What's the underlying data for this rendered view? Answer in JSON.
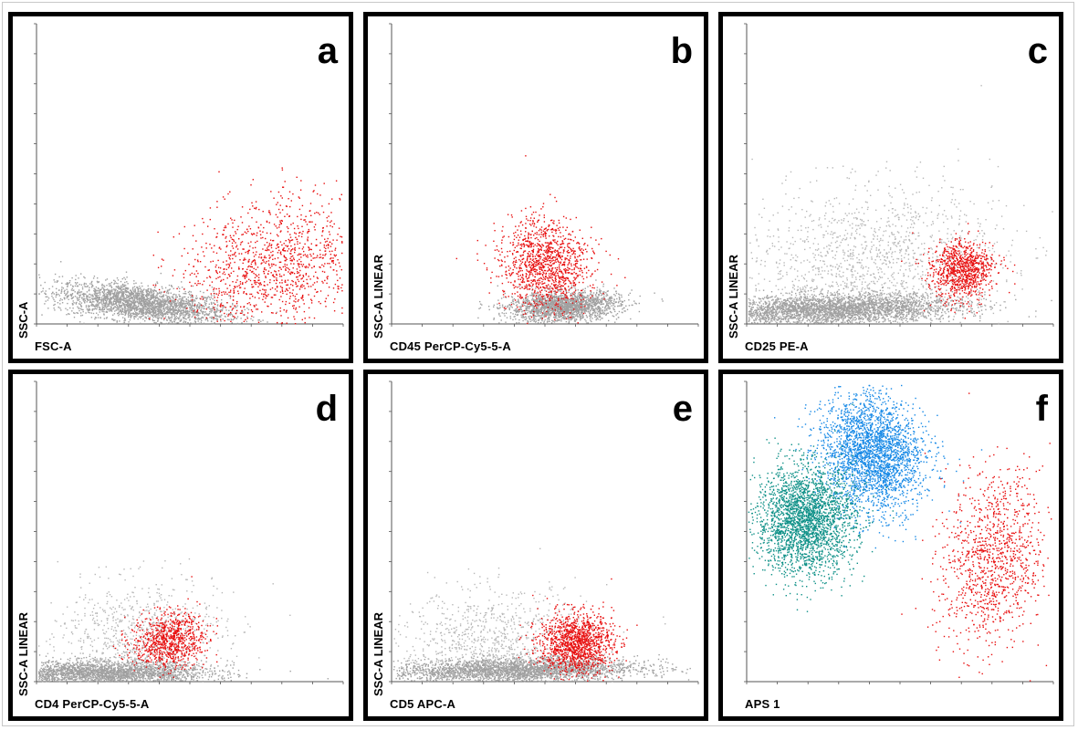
{
  "chart_data": [
    {
      "type": "scatter",
      "panel": "a",
      "xlabel": "FSC-A",
      "ylabel": "SSC-A",
      "populations": [
        {
          "color": "#a0a0a0",
          "n": 2600,
          "cx": 0.34,
          "cy": 0.07,
          "sx": 0.14,
          "sy": 0.03,
          "rot": -0.12
        },
        {
          "color": "#e81010",
          "n": 1300,
          "cx": 0.78,
          "cy": 0.19,
          "sx": 0.16,
          "sy": 0.11,
          "rot": 0.35
        }
      ]
    },
    {
      "type": "scatter",
      "panel": "b",
      "xlabel": "CD45 PerCP-Cy5-5-A",
      "ylabel": "SSC-A LINEAR",
      "populations": [
        {
          "color": "#a0a0a0",
          "n": 2000,
          "cx": 0.56,
          "cy": 0.06,
          "sx": 0.09,
          "sy": 0.025,
          "rot": 0.05
        },
        {
          "color": "#e81010",
          "n": 1200,
          "cx": 0.5,
          "cy": 0.2,
          "sx": 0.07,
          "sy": 0.08,
          "rot": 0.55
        }
      ]
    },
    {
      "type": "scatter",
      "panel": "c",
      "xlabel": "CD25 PE-A",
      "ylabel": "SSC-A LINEAR",
      "populations": [
        {
          "color": "#a0a0a0",
          "n": 3200,
          "cx": 0.28,
          "cy": 0.05,
          "sx": 0.2,
          "sy": 0.025,
          "rot": 0.03
        },
        {
          "color": "#b8b8b8",
          "n": 1500,
          "cx": 0.4,
          "cy": 0.2,
          "sx": 0.22,
          "sy": 0.13,
          "rot": 0.1
        },
        {
          "color": "#e81010",
          "n": 900,
          "cx": 0.7,
          "cy": 0.18,
          "sx": 0.05,
          "sy": 0.05,
          "rot": 0.4
        }
      ]
    },
    {
      "type": "scatter",
      "panel": "d",
      "xlabel": "CD4 PerCP-Cy5-5-A",
      "ylabel": "SSC-A LINEAR",
      "populations": [
        {
          "color": "#a0a0a0",
          "n": 2600,
          "cx": 0.22,
          "cy": 0.03,
          "sx": 0.17,
          "sy": 0.02,
          "rot": 0
        },
        {
          "color": "#b8b8b8",
          "n": 900,
          "cx": 0.33,
          "cy": 0.14,
          "sx": 0.14,
          "sy": 0.1,
          "rot": 0.15
        },
        {
          "color": "#e81010",
          "n": 850,
          "cx": 0.43,
          "cy": 0.14,
          "sx": 0.06,
          "sy": 0.045,
          "rot": 0.2
        }
      ]
    },
    {
      "type": "scatter",
      "panel": "e",
      "xlabel": "CD5 APC-A",
      "ylabel": "SSC-A LINEAR",
      "populations": [
        {
          "color": "#a0a0a0",
          "n": 2800,
          "cx": 0.4,
          "cy": 0.04,
          "sx": 0.2,
          "sy": 0.02,
          "rot": 0.02
        },
        {
          "color": "#b8b8b8",
          "n": 900,
          "cx": 0.32,
          "cy": 0.13,
          "sx": 0.16,
          "sy": 0.09,
          "rot": 0.1
        },
        {
          "color": "#e81010",
          "n": 1300,
          "cx": 0.6,
          "cy": 0.13,
          "sx": 0.06,
          "sy": 0.05,
          "rot": 0
        }
      ]
    },
    {
      "type": "scatter",
      "panel": "f",
      "xlabel": "APS 1",
      "ylabel": "",
      "populations": [
        {
          "color": "#1588e6",
          "n": 2600,
          "cx": 0.41,
          "cy": 0.76,
          "sx": 0.08,
          "sy": 0.1,
          "rot": 0.3
        },
        {
          "color": "#0f9188",
          "n": 2600,
          "cx": 0.19,
          "cy": 0.54,
          "sx": 0.08,
          "sy": 0.09,
          "rot": 0
        },
        {
          "color": "#e81010",
          "n": 1100,
          "cx": 0.8,
          "cy": 0.41,
          "sx": 0.08,
          "sy": 0.15,
          "rot": -0.15
        }
      ]
    }
  ]
}
